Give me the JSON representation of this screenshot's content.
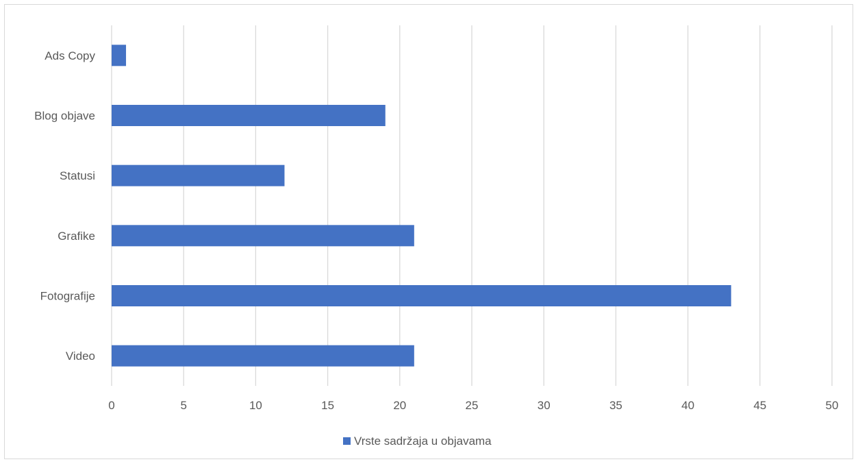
{
  "chart_data": {
    "type": "bar",
    "orientation": "horizontal",
    "categories": [
      "Ads Copy",
      "Blog objave",
      "Statusi",
      "Grafike",
      "Fotografije",
      "Video"
    ],
    "series": [
      {
        "name": "Vrste sadržaja u objavama",
        "values": [
          1,
          19,
          12,
          21,
          43,
          21
        ],
        "color": "#4472c4"
      }
    ],
    "xlim": [
      0,
      50
    ],
    "x_ticks": [
      "0",
      "5",
      "10",
      "15",
      "20",
      "25",
      "30",
      "35",
      "40",
      "45",
      "50"
    ],
    "grid": "vertical",
    "legend_position": "bottom",
    "gridline_color": "#d9d9d9",
    "text_color": "#595959"
  }
}
